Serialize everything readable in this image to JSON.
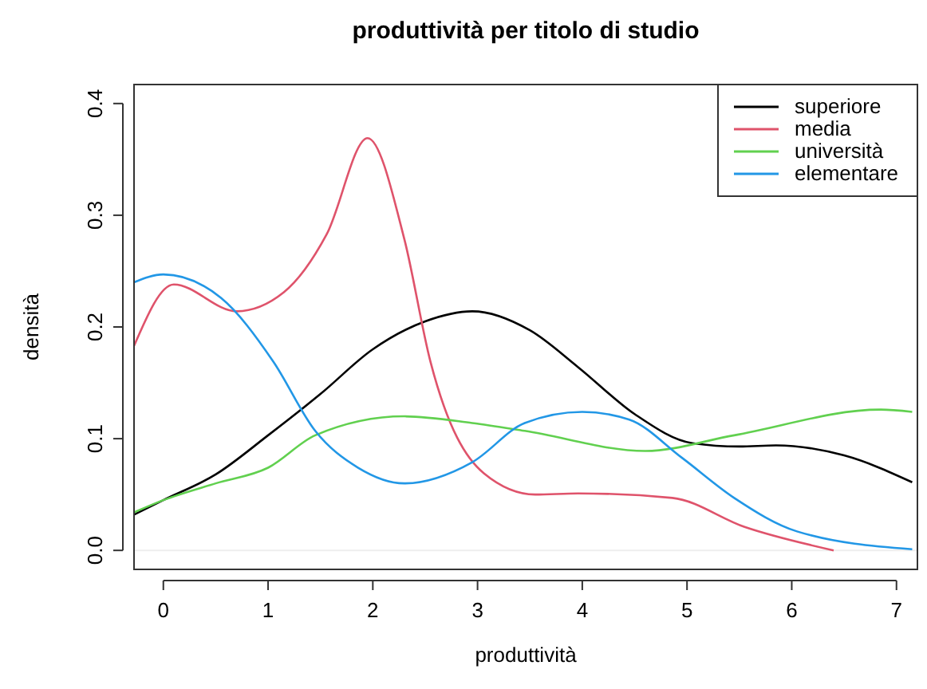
{
  "chart_data": {
    "type": "line",
    "title": "produttività per titolo di studio",
    "xlabel": "produttività",
    "ylabel": "densità",
    "xlim": [
      -0.28,
      7.2
    ],
    "ylim": [
      -0.017,
      0.417
    ],
    "xticks": [
      0,
      1,
      2,
      3,
      4,
      5,
      6,
      7
    ],
    "yticks": [
      {
        "value": 0,
        "label": "0.0"
      },
      {
        "value": 0.1,
        "label": "0.1"
      },
      {
        "value": 0.2,
        "label": "0.2"
      },
      {
        "value": 0.3,
        "label": "0.3"
      },
      {
        "value": 0.4,
        "label": "0.4"
      }
    ],
    "grid": false,
    "legend": "top right",
    "marker": "none",
    "line_style": "solid",
    "ref_lines": [
      {
        "axis": "y",
        "value": 0,
        "color": "#eeeeee"
      }
    ],
    "series": [
      {
        "name": "superiore",
        "color": "#000000",
        "x": [
          -0.28,
          0,
          0.5,
          1,
          1.5,
          2,
          2.5,
          2.95,
          3.5,
          3.96,
          4.5,
          5.05,
          5.5,
          5.85,
          6.5,
          7.15
        ],
        "values": [
          0.032,
          0.045,
          0.068,
          0.103,
          0.14,
          0.18,
          0.205,
          0.214,
          0.197,
          0.164,
          0.122,
          0.096,
          0.093,
          0.094,
          0.085,
          0.061
        ]
      },
      {
        "name": "media",
        "color": "#df536b",
        "x": [
          -0.28,
          0.1,
          0.7,
          1.15,
          1.56,
          1.95,
          2.3,
          2.55,
          3.06,
          3.55,
          3.96,
          4.86,
          5.55,
          6.4
        ],
        "values": [
          0.183,
          0.238,
          0.214,
          0.231,
          0.283,
          0.369,
          0.279,
          0.169,
          0.069,
          0.05,
          0.051,
          0.047,
          0.021,
          0.0
        ]
      },
      {
        "name": "università",
        "color": "#61d04f",
        "x": [
          -0.28,
          0,
          0.5,
          1,
          1.45,
          2.3,
          2.95,
          3.45,
          4.6,
          5.45,
          6.85,
          7.15
        ],
        "values": [
          0.034,
          0.045,
          0.06,
          0.074,
          0.103,
          0.12,
          0.114,
          0.107,
          0.089,
          0.103,
          0.126,
          0.124
        ]
      },
      {
        "name": "elementare",
        "color": "#2297e6",
        "x": [
          -0.28,
          0,
          0.55,
          1.05,
          1.45,
          1.86,
          2.3,
          2.95,
          3.45,
          4,
          4.45,
          4.95,
          5.45,
          6.05,
          7.15
        ],
        "values": [
          0.24,
          0.247,
          0.226,
          0.169,
          0.107,
          0.074,
          0.06,
          0.079,
          0.114,
          0.124,
          0.117,
          0.083,
          0.047,
          0.017,
          0.001
        ]
      }
    ]
  }
}
